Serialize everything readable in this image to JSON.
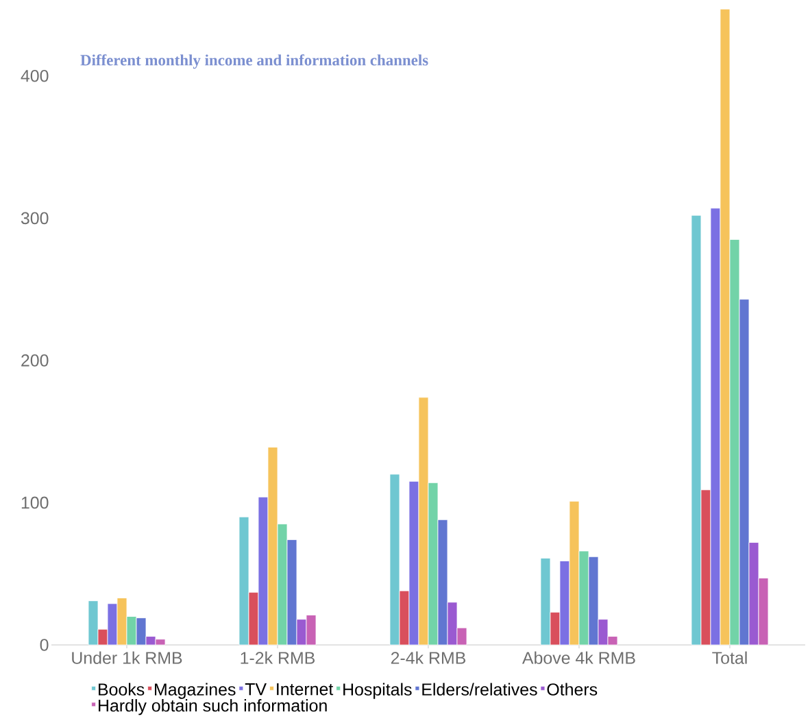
{
  "chart_data": {
    "type": "bar",
    "title": "Different monthly income and information channels",
    "categories": [
      "Under 1k RMB",
      "1-2k RMB",
      "2-4k RMB",
      "Above 4k RMB",
      "Total"
    ],
    "series": [
      {
        "name": "Books",
        "color": "#6fc7d1",
        "values": [
          31,
          90,
          120,
          61,
          302
        ]
      },
      {
        "name": "Magazines",
        "color": "#d94f5c",
        "values": [
          11,
          37,
          38,
          23,
          109
        ]
      },
      {
        "name": "TV",
        "color": "#7b70e3",
        "values": [
          29,
          104,
          115,
          59,
          307
        ]
      },
      {
        "name": "Internet",
        "color": "#f6c35b",
        "values": [
          33,
          139,
          174,
          101,
          447
        ]
      },
      {
        "name": "Hospitals",
        "color": "#72d3a8",
        "values": [
          20,
          85,
          114,
          66,
          285
        ]
      },
      {
        "name": "Elders/relatives",
        "color": "#6176d1",
        "values": [
          19,
          74,
          88,
          62,
          243
        ]
      },
      {
        "name": "Others",
        "color": "#9a5ad1",
        "values": [
          6,
          18,
          30,
          18,
          72
        ]
      },
      {
        "name": "Hardly obtain such information",
        "color": "#c862b5",
        "values": [
          4,
          21,
          12,
          6,
          47
        ]
      }
    ],
    "ylim": [
      0,
      450
    ],
    "yticks": [
      0,
      100,
      200,
      300,
      400
    ],
    "grid": false,
    "legend": "bottom"
  }
}
